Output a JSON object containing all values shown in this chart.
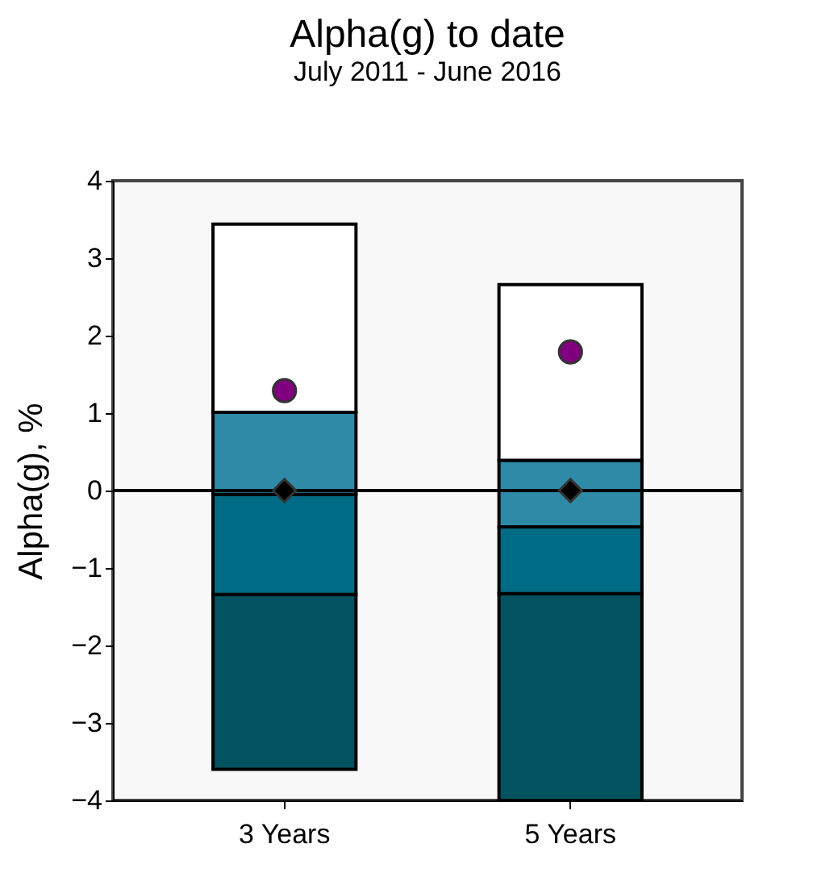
{
  "chart_data": {
    "type": "bar",
    "title": "Alpha(g) to date",
    "subtitle": "July 2011 - June 2016",
    "ylabel": "Alpha(g), %",
    "categories": [
      "3 Years",
      "5 Years"
    ],
    "series": [
      {
        "color": "#03525f",
        "base": [
          -3.6,
          -4.0
        ],
        "values": [
          2.26,
          2.67
        ]
      },
      {
        "color": "#006b85",
        "base": [
          -1.34,
          -1.33
        ],
        "values": [
          1.29,
          0.86
        ]
      },
      {
        "color": "#2f8aa8",
        "base": [
          -0.05,
          -0.47
        ],
        "values": [
          1.06,
          0.86
        ]
      },
      {
        "color": "#ffffff",
        "base": [
          1.01,
          0.39
        ],
        "values": [
          2.43,
          2.27
        ]
      },
      {
        "type": "scatter",
        "marker": "circle",
        "color": "#800080",
        "x": [
          "3 Years",
          "5 Years"
        ],
        "values": [
          1.29,
          1.79
        ]
      },
      {
        "type": "scatter",
        "marker": "diamond",
        "color": "#000000",
        "x": [
          "3 Years",
          "5 Years"
        ],
        "values": [
          0,
          0
        ]
      }
    ],
    "ylim": [
      -4,
      4
    ],
    "yticks": [
      -4,
      -3,
      -2,
      -1,
      0,
      1,
      2,
      3,
      4
    ],
    "ref_lines": [
      {
        "axis": "y",
        "value": 0,
        "color": "#000000"
      }
    ],
    "grid": false
  }
}
